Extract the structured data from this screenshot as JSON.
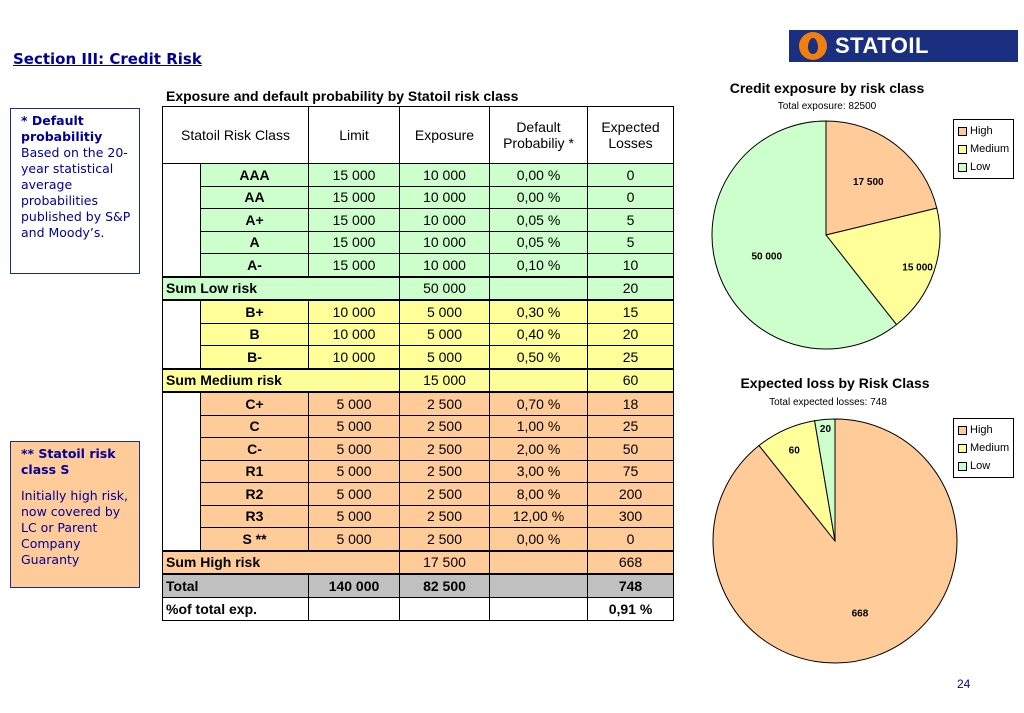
{
  "slide": {
    "title": "Section III: Credit Risk",
    "page_number": "24"
  },
  "logo": {
    "text": "STATOIL"
  },
  "notes": {
    "note1": {
      "heading": "* Default probabilitiy",
      "body": "Based on the 20-year statistical average probabilities published by S&P and Moody’s."
    },
    "note2": {
      "heading": "** Statoil risk class S",
      "body": "Initially high risk, now covered by LC or Parent Company Guaranty"
    }
  },
  "table": {
    "title": "Exposure and default probability by Statoil risk class",
    "headers": {
      "class": "Statoil Risk Class",
      "limit": "Limit",
      "exposure": "Exposure",
      "default_l1": "Default",
      "default_l2": "Probabiliy *",
      "losses_l1": "Expected",
      "losses_l2": "Losses"
    },
    "low": [
      {
        "class": "AAA",
        "limit": "15 000",
        "exposure": "10 000",
        "default": "0,00 %",
        "loss": "0"
      },
      {
        "class": "AA",
        "limit": "15 000",
        "exposure": "10 000",
        "default": "0,00 %",
        "loss": "0"
      },
      {
        "class": "A+",
        "limit": "15 000",
        "exposure": "10 000",
        "default": "0,05 %",
        "loss": "5"
      },
      {
        "class": "A",
        "limit": "15 000",
        "exposure": "10 000",
        "default": "0,05 %",
        "loss": "5"
      },
      {
        "class": "A-",
        "limit": "15 000",
        "exposure": "10 000",
        "default": "0,10 %",
        "loss": "10"
      }
    ],
    "sum_low": {
      "label": "Sum Low risk",
      "exposure": "50 000",
      "loss": "20"
    },
    "medium": [
      {
        "class": "B+",
        "limit": "10 000",
        "exposure": "5 000",
        "default": "0,30 %",
        "loss": "15"
      },
      {
        "class": "B",
        "limit": "10 000",
        "exposure": "5 000",
        "default": "0,40 %",
        "loss": "20"
      },
      {
        "class": "B-",
        "limit": "10 000",
        "exposure": "5 000",
        "default": "0,50 %",
        "loss": "25"
      }
    ],
    "sum_medium": {
      "label": "Sum Medium risk",
      "exposure": "15 000",
      "loss": "60"
    },
    "high": [
      {
        "class": "C+",
        "limit": "5 000",
        "exposure": "2 500",
        "default": "0,70 %",
        "loss": "18"
      },
      {
        "class": "C",
        "limit": "5 000",
        "exposure": "2 500",
        "default": "1,00 %",
        "loss": "25"
      },
      {
        "class": "C-",
        "limit": "5 000",
        "exposure": "2 500",
        "default": "2,00 %",
        "loss": "50"
      },
      {
        "class": "R1",
        "limit": "5 000",
        "exposure": "2 500",
        "default": "3,00 %",
        "loss": "75"
      },
      {
        "class": "R2",
        "limit": "5 000",
        "exposure": "2 500",
        "default": "8,00 %",
        "loss": "200"
      },
      {
        "class": "R3",
        "limit": "5 000",
        "exposure": "2 500",
        "default": "12,00 %",
        "loss": "300"
      },
      {
        "class": "S **",
        "limit": "5 000",
        "exposure": "2 500",
        "default": "0,00 %",
        "loss": "0"
      }
    ],
    "sum_high": {
      "label": "Sum High risk",
      "exposure": "17 500",
      "loss": "668"
    },
    "total": {
      "label": "Total",
      "limit": "140 000",
      "exposure": "82 500",
      "loss": "748"
    },
    "pct": {
      "label": "%of total exp.",
      "loss": "0,91 %"
    }
  },
  "colors": {
    "high": "#ffcc99",
    "medium": "#ffff99",
    "low": "#ccffcc",
    "accent": "#000099"
  },
  "chart_data": [
    {
      "type": "pie",
      "title": "Credit exposure by risk class",
      "subtitle": "Total exposure: 82500",
      "categories": [
        "High",
        "Medium",
        "Low"
      ],
      "values": [
        17500,
        15000,
        50000
      ],
      "labels": [
        "17 500",
        "15 000",
        "50 000"
      ],
      "legend": "right"
    },
    {
      "type": "pie",
      "title": "Expected loss by Risk Class",
      "subtitle": "Total expected losses: 748",
      "categories": [
        "High",
        "Medium",
        "Low"
      ],
      "values": [
        668,
        60,
        20
      ],
      "labels": [
        "668",
        "60",
        "20"
      ],
      "legend": "right"
    }
  ]
}
